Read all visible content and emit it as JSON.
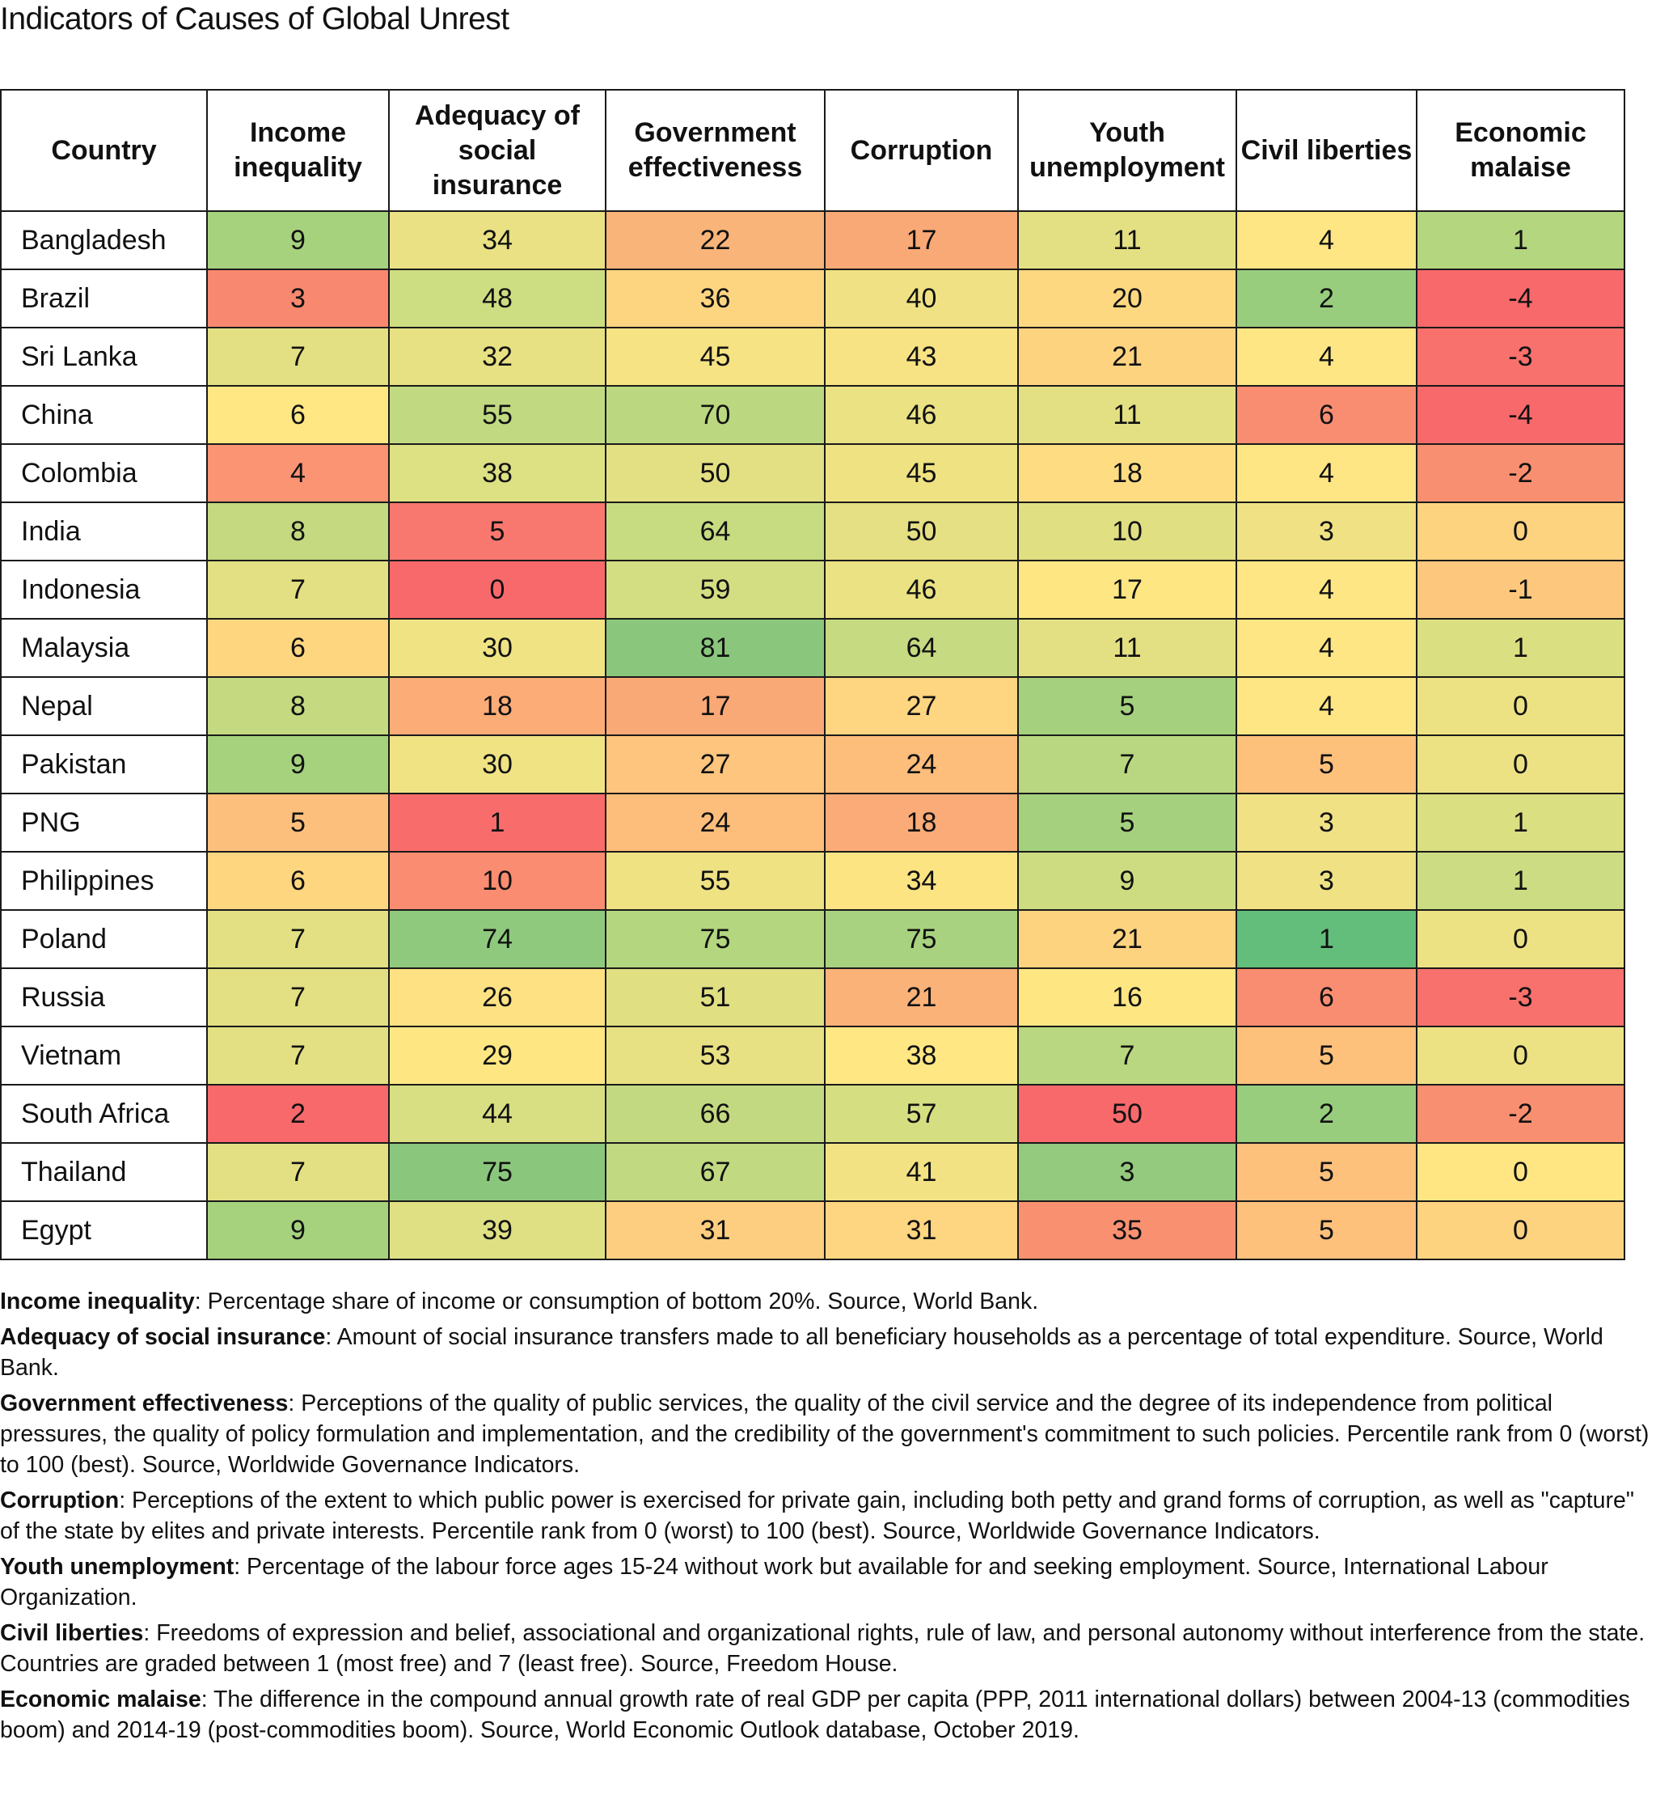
{
  "title": "Indicators of Causes of Global Unrest",
  "chart_data": {
    "type": "table",
    "title": "Indicators of Causes of Global Unrest",
    "columns": [
      "Country",
      "Income inequality",
      "Adequacy of social insurance",
      "Government effectiveness",
      "Corruption",
      "Youth unemployment",
      "Civil liberties",
      "Economic malaise"
    ],
    "rows": [
      {
        "country": "Bangladesh",
        "values": [
          9,
          34,
          22,
          17,
          11,
          4,
          1
        ]
      },
      {
        "country": "Brazil",
        "values": [
          3,
          48,
          36,
          40,
          20,
          2,
          -4
        ]
      },
      {
        "country": "Sri Lanka",
        "values": [
          7,
          32,
          45,
          43,
          21,
          4,
          -3
        ]
      },
      {
        "country": "China",
        "values": [
          6,
          55,
          70,
          46,
          11,
          6,
          -4
        ]
      },
      {
        "country": "Colombia",
        "values": [
          4,
          38,
          50,
          45,
          18,
          4,
          -2
        ]
      },
      {
        "country": "India",
        "values": [
          8,
          5,
          64,
          50,
          10,
          3,
          0
        ]
      },
      {
        "country": "Indonesia",
        "values": [
          7,
          0,
          59,
          46,
          17,
          4,
          -1
        ]
      },
      {
        "country": "Malaysia",
        "values": [
          6,
          30,
          81,
          64,
          11,
          4,
          1
        ]
      },
      {
        "country": "Nepal",
        "values": [
          8,
          18,
          17,
          27,
          5,
          4,
          0
        ]
      },
      {
        "country": "Pakistan",
        "values": [
          9,
          30,
          27,
          24,
          7,
          5,
          0
        ]
      },
      {
        "country": "PNG",
        "values": [
          5,
          1,
          24,
          18,
          5,
          3,
          1
        ]
      },
      {
        "country": "Philippines",
        "values": [
          6,
          10,
          55,
          34,
          9,
          3,
          1
        ]
      },
      {
        "country": "Poland",
        "values": [
          7,
          74,
          75,
          75,
          21,
          1,
          0
        ]
      },
      {
        "country": "Russia",
        "values": [
          7,
          26,
          51,
          21,
          16,
          6,
          -3
        ]
      },
      {
        "country": "Vietnam",
        "values": [
          7,
          29,
          53,
          38,
          7,
          5,
          0
        ]
      },
      {
        "country": "South Africa",
        "values": [
          2,
          44,
          66,
          57,
          50,
          2,
          -2
        ]
      },
      {
        "country": "Thailand",
        "values": [
          7,
          75,
          67,
          41,
          3,
          5,
          0
        ]
      },
      {
        "country": "Egypt",
        "values": [
          9,
          39,
          31,
          31,
          35,
          5,
          0
        ]
      }
    ],
    "cell_colors": [
      [
        "#a6d27e",
        "#e9e183",
        "#f9b479",
        "#f9a976",
        "#e3e083",
        "#fde683",
        "#b4d67f"
      ],
      [
        "#f8886f",
        "#cddd82",
        "#fdd581",
        "#f0e284",
        "#fed881",
        "#98cd7e",
        "#f8696b"
      ],
      [
        "#e2e083",
        "#e7e183",
        "#f5e384",
        "#f7e383",
        "#fed380",
        "#fde683",
        "#f8716d"
      ],
      [
        "#ffe784",
        "#c1da81",
        "#bbd880",
        "#eae283",
        "#e3e083",
        "#f98d71",
        "#f8696b"
      ],
      [
        "#fa9473",
        "#dde083",
        "#e3e083",
        "#efe283",
        "#fedd82",
        "#fde683",
        "#f98f71"
      ],
      [
        "#c4d980",
        "#f8776e",
        "#c7db81",
        "#e4e083",
        "#e0df82",
        "#f0e284",
        "#fed380"
      ],
      [
        "#e2e083",
        "#f8696b",
        "#d3dd82",
        "#eae283",
        "#fee683",
        "#fde683",
        "#fdc87e"
      ],
      [
        "#fed680",
        "#f0e384",
        "#8ac77c",
        "#c6da81",
        "#e3e083",
        "#fde683",
        "#dadf82"
      ],
      [
        "#c4d980",
        "#fbac77",
        "#f9a976",
        "#fed580",
        "#a5d17e",
        "#fde683",
        "#ede283"
      ],
      [
        "#a6d27e",
        "#f0e384",
        "#fdc57d",
        "#fdbd7b",
        "#b9d780",
        "#fdc17c",
        "#ede283"
      ],
      [
        "#fdc07c",
        "#f86d6b",
        "#fdbe7b",
        "#faab77",
        "#a5d17e",
        "#f0e284",
        "#dadf82"
      ],
      [
        "#fed680",
        "#f98c71",
        "#eee283",
        "#fde482",
        "#cedc81",
        "#f0e284",
        "#cbdc82"
      ],
      [
        "#e2e083",
        "#8fc97d",
        "#b3d67f",
        "#a8d27f",
        "#fed380",
        "#63be7b",
        "#ede283"
      ],
      [
        "#e2e083",
        "#fee182",
        "#e0df82",
        "#fbb279",
        "#fee683",
        "#f98d71",
        "#f8716d"
      ],
      [
        "#e2e083",
        "#fee783",
        "#e8e183",
        "#ffe884",
        "#b9d780",
        "#fdc17c",
        "#ede283"
      ],
      [
        "#f8696b",
        "#d8de82",
        "#c3d981",
        "#d6de82",
        "#f8696b",
        "#98cd7e",
        "#f98f71"
      ],
      [
        "#e2e083",
        "#8ac77c",
        "#c1d981",
        "#f2e284",
        "#93ca7d",
        "#fdc17c",
        "#ffe683"
      ],
      [
        "#a6d27e",
        "#dee083",
        "#fdce7f",
        "#fed580",
        "#f99171",
        "#fdc17c",
        "#fed380"
      ]
    ]
  },
  "notes": [
    {
      "term": "Income inequality",
      "text": ": Percentage share of income or consumption of bottom 20%. Source, World Bank."
    },
    {
      "term": "Adequacy of social insurance",
      "text": ": Amount of social insurance transfers made to all beneficiary households as a percentage of total expenditure. Source, World Bank."
    },
    {
      "term": "Government effectiveness",
      "text": ": Perceptions of the quality of public services, the quality of the civil service and the degree of its independence from political pressures, the quality of policy formulation and implementation, and the credibility of the government's commitment to such policies. Percentile rank from 0 (worst) to 100 (best). Source, Worldwide Governance Indicators."
    },
    {
      "term": "Corruption",
      "text": ": Perceptions of the extent to which public power is exercised for private gain, including both petty and grand forms of corruption, as well as \"capture\" of the state by elites and private interests. Percentile rank from 0 (worst) to 100 (best). Source, Worldwide Governance Indicators."
    },
    {
      "term": "Youth unemployment",
      "text": ": Percentage of the labour force ages 15-24 without work but available for and seeking employment. Source, International Labour Organization."
    },
    {
      "term": "Civil liberties",
      "text": ": Freedoms of expression and belief, associational and organizational rights, rule of law, and personal autonomy without interference from the state. Countries are graded between 1 (most free) and 7 (least free). Source, Freedom House."
    },
    {
      "term": "Economic malaise",
      "text": ": The difference in the compound annual growth rate of real GDP per capita (PPP, 2011 international dollars) between 2004-13 (commodities boom) and 2014-19 (post-commodities boom). Source, World Economic Outlook database, October 2019."
    }
  ]
}
